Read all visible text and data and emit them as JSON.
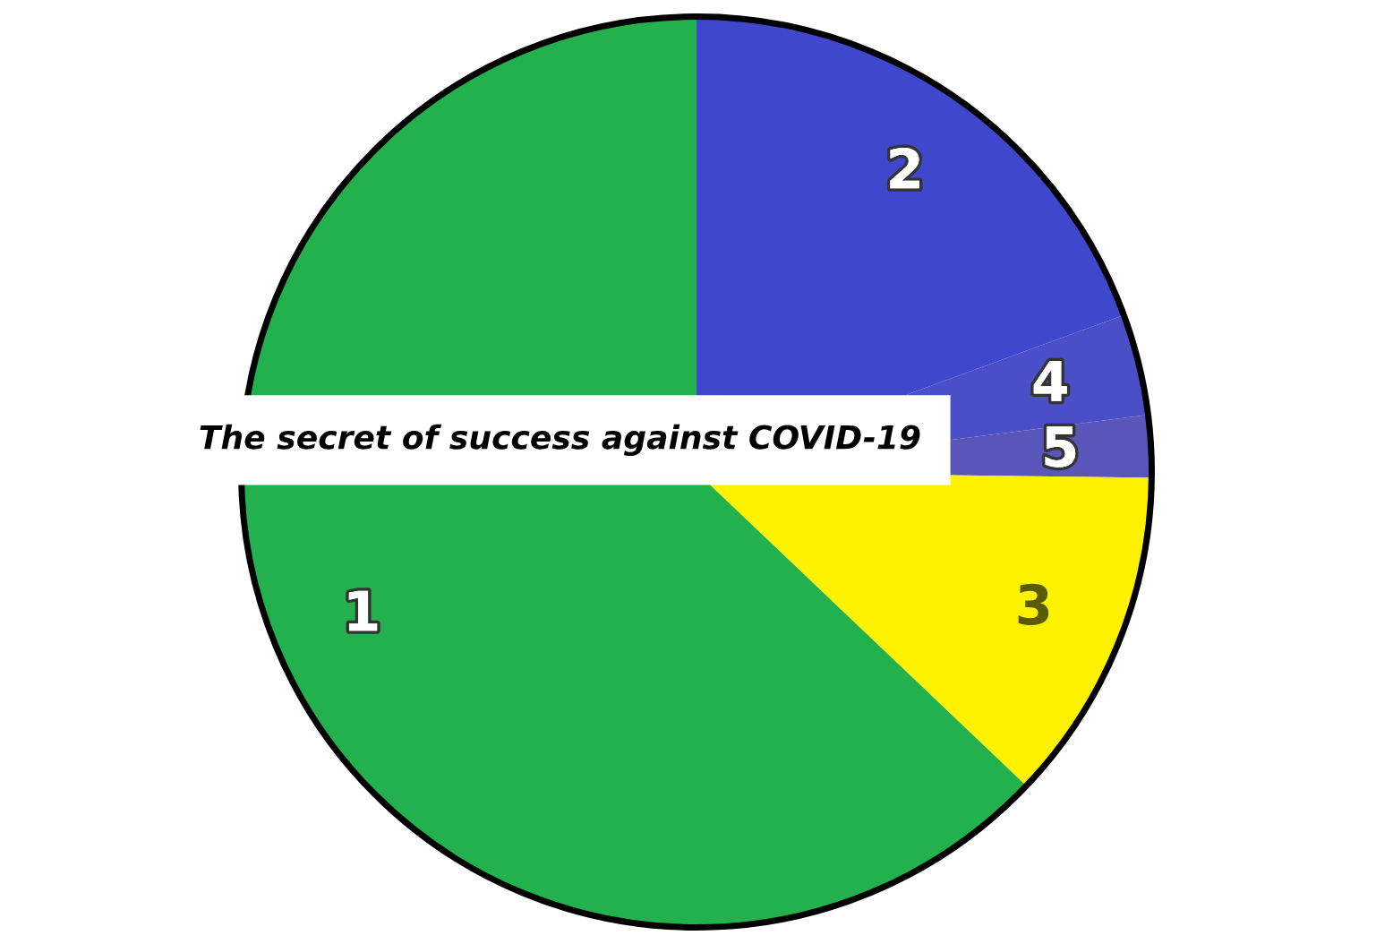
{
  "chart_data": {
    "type": "pie",
    "categories": [
      "2",
      "4",
      "5",
      "3",
      "1"
    ],
    "values": [
      19.4,
      3.6,
      2.2,
      11.9,
      62.9
    ],
    "colors": [
      "#3f48cc",
      "#4a4fc8",
      "#5a55b8",
      "#fff200",
      "#22b14c"
    ],
    "annotations": [
      "The secret of success against COVID-19"
    ]
  }
}
